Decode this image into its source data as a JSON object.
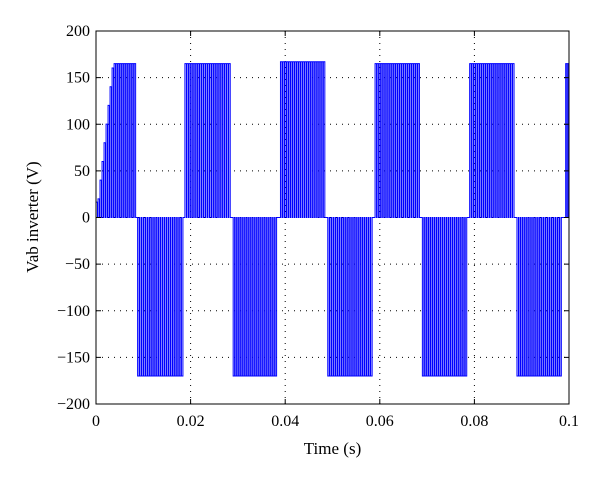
{
  "chart_data": {
    "type": "line",
    "title": "",
    "xlabel": "Time (s)",
    "ylabel": "Vab inverter (V)",
    "xlim": [
      0,
      0.1
    ],
    "ylim": [
      -200,
      200
    ],
    "xticks": [
      0,
      0.02,
      0.04,
      0.06,
      0.08,
      0.1
    ],
    "xtick_labels": [
      "0",
      "0.02",
      "0.04",
      "0.06",
      "0.08",
      "0.1"
    ],
    "yticks": [
      200,
      150,
      100,
      50,
      0,
      -50,
      -100,
      -150,
      -200
    ],
    "ytick_labels": [
      "200",
      "150",
      "100",
      "50",
      "0",
      "−50",
      "−100",
      "−150",
      "−200"
    ],
    "grid": "dotted",
    "line_color": "#0000ff",
    "series": [
      {
        "description": "PWM switching waveform alternating between ~+165 V pulse bursts and ~−170 V pulse bursts every 0.01 s (50 Hz fundamental)",
        "half_cycles": [
          {
            "t_start": 0.0,
            "t_end": 0.0085,
            "polarity": 1,
            "amplitude": 165,
            "ramp_start": 0.0,
            "ramp_end": 0.0035
          },
          {
            "t_start": 0.0088,
            "t_end": 0.0185,
            "polarity": -1,
            "amplitude": 170
          },
          {
            "t_start": 0.0188,
            "t_end": 0.0285,
            "polarity": 1,
            "amplitude": 165
          },
          {
            "t_start": 0.029,
            "t_end": 0.0383,
            "polarity": -1,
            "amplitude": 170
          },
          {
            "t_start": 0.039,
            "t_end": 0.0485,
            "polarity": 1,
            "amplitude": 167
          },
          {
            "t_start": 0.049,
            "t_end": 0.0585,
            "polarity": -1,
            "amplitude": 170
          },
          {
            "t_start": 0.059,
            "t_end": 0.0685,
            "polarity": 1,
            "amplitude": 165
          },
          {
            "t_start": 0.069,
            "t_end": 0.0785,
            "polarity": -1,
            "amplitude": 170
          },
          {
            "t_start": 0.079,
            "t_end": 0.0885,
            "polarity": 1,
            "amplitude": 165
          },
          {
            "t_start": 0.089,
            "t_end": 0.0985,
            "polarity": -1,
            "amplitude": 170
          },
          {
            "t_start": 0.0993,
            "t_end": 0.1,
            "polarity": 1,
            "amplitude": 165
          }
        ],
        "pulses_per_half_cycle": 22
      }
    ]
  }
}
